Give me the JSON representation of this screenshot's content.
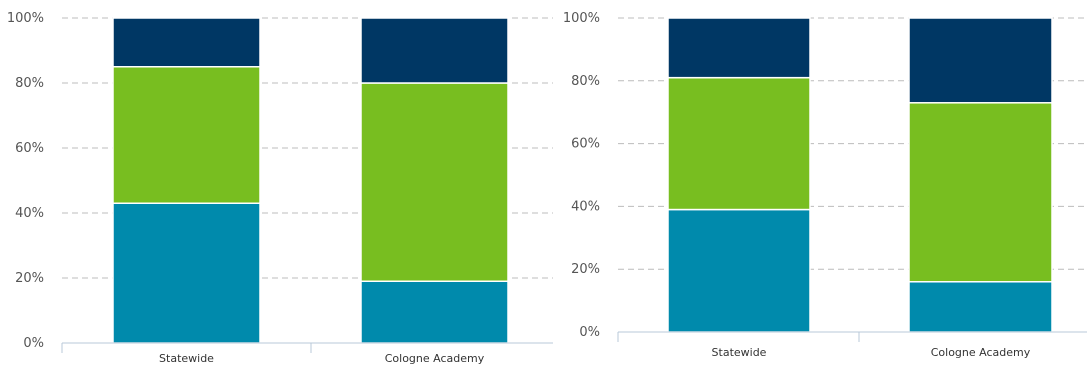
{
  "chart_data": [
    {
      "type": "bar",
      "stacked": true,
      "categories": [
        "Statewide",
        "Cologne Academy"
      ],
      "series": [
        {
          "values": [
            43,
            19
          ],
          "color": "#008aac"
        },
        {
          "values": [
            42,
            61
          ],
          "color": "#78be20"
        },
        {
          "values": [
            15,
            20
          ],
          "color": "#003764"
        }
      ],
      "y_ticks": [
        "0%",
        "20%",
        "40%",
        "60%",
        "80%",
        "100%"
      ],
      "ylim": [
        0,
        100
      ],
      "grid": true,
      "legend": "none"
    },
    {
      "type": "bar",
      "stacked": true,
      "categories": [
        "Statewide",
        "Cologne Academy"
      ],
      "series": [
        {
          "values": [
            39,
            16
          ],
          "color": "#008aac"
        },
        {
          "values": [
            42,
            57
          ],
          "color": "#78be20"
        },
        {
          "values": [
            19,
            27
          ],
          "color": "#003764"
        }
      ],
      "y_ticks": [
        "0%",
        "20%",
        "40%",
        "60%",
        "80%",
        "100%"
      ],
      "ylim": [
        0,
        100
      ],
      "grid": true,
      "legend": "none"
    }
  ]
}
